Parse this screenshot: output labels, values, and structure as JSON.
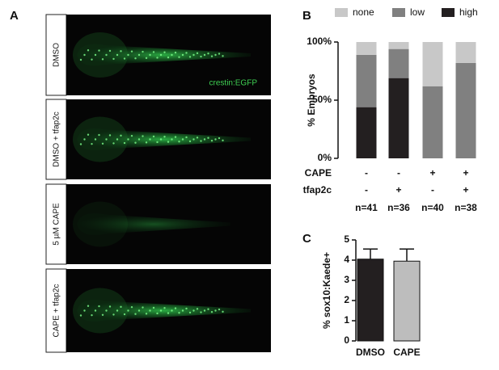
{
  "panel_labels": [
    "A",
    "B",
    "C"
  ],
  "images": {
    "conditions": [
      "DMSO",
      "DMSO + tfap2c",
      "5 µM CAPE",
      "CAPE + tfap2c"
    ],
    "annotation": "crestin:EGFP"
  },
  "chart_data": [
    {
      "type": "stacked_bar",
      "categories": [
        "n=41",
        "n=36",
        "n=40",
        "n=38"
      ],
      "conditions": [
        {
          "name": "CAPE",
          "values": [
            "-",
            "-",
            "+",
            "+"
          ]
        },
        {
          "name": "tfap2c",
          "values": [
            "-",
            "+",
            "-",
            "+"
          ]
        }
      ],
      "series": [
        {
          "name": "none",
          "color": "#c8c8c8",
          "values": [
            11,
            6,
            38,
            18
          ]
        },
        {
          "name": "low",
          "color": "#808080",
          "values": [
            45,
            25,
            62,
            82
          ]
        },
        {
          "name": "high",
          "color": "#231f20",
          "values": [
            44,
            69,
            0,
            0
          ]
        }
      ],
      "ylabel": "% Embryos",
      "ylim": [
        0,
        100
      ],
      "yticks": [
        {
          "value": 0,
          "label": "0%"
        },
        {
          "value": 50,
          "label": "50%"
        },
        {
          "value": 100,
          "label": "100%"
        }
      ],
      "legend": "top"
    },
    {
      "type": "bar",
      "categories": [
        "DMSO",
        "CAPE"
      ],
      "values": [
        4.05,
        3.95
      ],
      "errors": [
        0.5,
        0.6
      ],
      "colors": [
        "#231f20",
        "#bdbdbd"
      ],
      "ylabel": "% sox10:Kaede+",
      "ylim": [
        0,
        5
      ],
      "yticks": [
        0,
        1,
        2,
        3,
        4,
        5
      ]
    }
  ]
}
